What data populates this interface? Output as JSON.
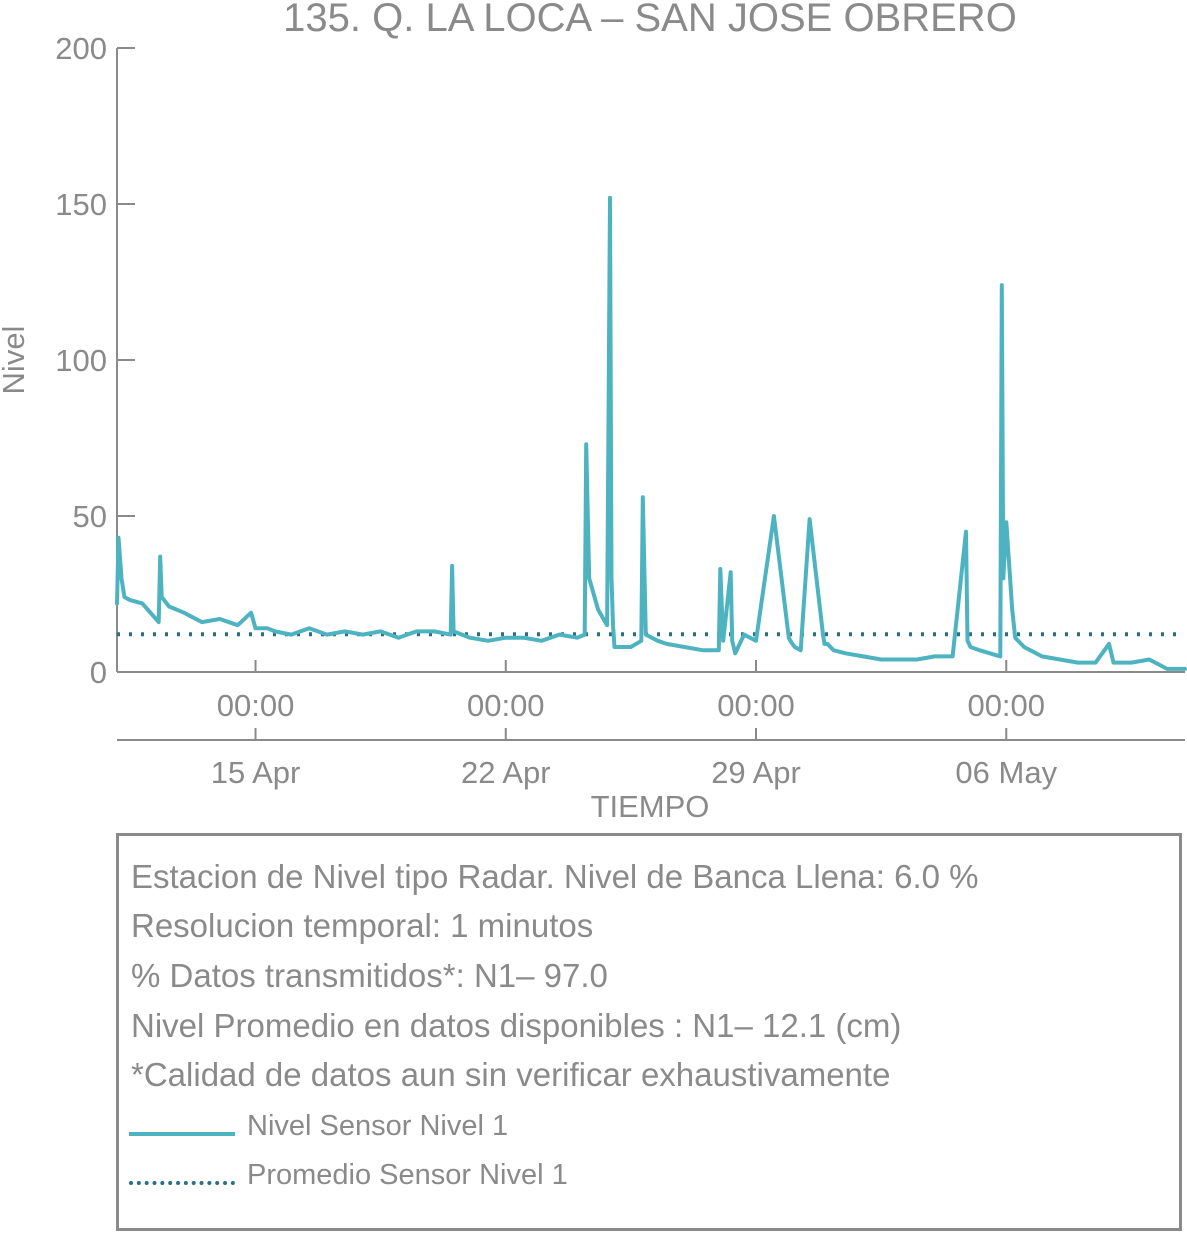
{
  "colors": {
    "level": "#4db3c0",
    "mean": "#2a6f87",
    "text": "#8a8a8a"
  },
  "chart_data": {
    "type": "line",
    "title": "135. Q. LA LOCA – SAN JOSE OBRERO",
    "xlabel": "TIEMPO",
    "ylabel": "Nivel",
    "ylim": [
      0,
      200
    ],
    "yticks": [
      0,
      50,
      100,
      150,
      200
    ],
    "xlim": [
      "2019-04-12 03:00",
      "2019-05-12 00:00"
    ],
    "xticks_time": [
      "00:00",
      "00:00",
      "00:00",
      "00:00"
    ],
    "xticks_date": [
      "15 Apr",
      "22 Apr",
      "29 Apr",
      "06 May"
    ],
    "xticks": [
      "2019-04-16 00:00",
      "2019-04-23 00:00",
      "2019-04-30 00:00",
      "2019-05-07 00:00"
    ],
    "grid": false,
    "legend": "bottom box",
    "series": [
      {
        "name": "Nivel Sensor Nivel 1",
        "style": "solid",
        "x": [
          "2019-04-12 03:00",
          "2019-04-12 04:00",
          "2019-04-12 06:00",
          "2019-04-12 08:00",
          "2019-04-12 12:00",
          "2019-04-12 20:00",
          "2019-04-13 07:00",
          "2019-04-13 08:00",
          "2019-04-13 09:00",
          "2019-04-13 14:00",
          "2019-04-14 00:00",
          "2019-04-14 12:00",
          "2019-04-15 00:00",
          "2019-04-15 12:00",
          "2019-04-15 21:00",
          "2019-04-16 00:00",
          "2019-04-16 08:00",
          "2019-04-16 13:00",
          "2019-04-17 00:00",
          "2019-04-17 12:00",
          "2019-04-18 00:00",
          "2019-04-18 12:00",
          "2019-04-19 00:00",
          "2019-04-19 12:00",
          "2019-04-20 00:00",
          "2019-04-20 12:00",
          "2019-04-21 00:00",
          "2019-04-21 11:00",
          "2019-04-21 12:00",
          "2019-04-21 13:00",
          "2019-04-22 00:00",
          "2019-04-22 12:00",
          "2019-04-23 00:00",
          "2019-04-23 12:00",
          "2019-04-24 00:00",
          "2019-04-24 12:00",
          "2019-04-25 00:00",
          "2019-04-25 05:00",
          "2019-04-25 06:00",
          "2019-04-25 08:00",
          "2019-04-25 14:00",
          "2019-04-25 20:00",
          "2019-04-25 22:00",
          "2019-04-25 23:00",
          "2019-04-26 00:00",
          "2019-04-26 01:00",
          "2019-04-26 04:00",
          "2019-04-26 12:00",
          "2019-04-26 19:00",
          "2019-04-26 20:00",
          "2019-04-26 22:00",
          "2019-04-27 06:00",
          "2019-04-27 12:00",
          "2019-04-28 00:00",
          "2019-04-28 12:00",
          "2019-04-28 23:00",
          "2019-04-29 00:00",
          "2019-04-29 02:00",
          "2019-04-29 07:00",
          "2019-04-29 08:00",
          "2019-04-29 10:00",
          "2019-04-29 16:00",
          "2019-04-30 00:00",
          "2019-04-30 12:00",
          "2019-04-30 22:00",
          "2019-04-30 23:00",
          "2019-05-01 02:00",
          "2019-05-01 06:00",
          "2019-05-01 12:00",
          "2019-05-01 21:00",
          "2019-05-01 22:00",
          "2019-05-02 00:00",
          "2019-05-02 04:00",
          "2019-05-02 12:00",
          "2019-05-03 00:00",
          "2019-05-03 12:00",
          "2019-05-04 00:00",
          "2019-05-04 12:00",
          "2019-05-05 00:00",
          "2019-05-05 12:00",
          "2019-05-05 21:00",
          "2019-05-05 22:00",
          "2019-05-06 00:00",
          "2019-05-06 06:00",
          "2019-05-06 20:00",
          "2019-05-06 21:00",
          "2019-05-06 22:00",
          "2019-05-07 00:00",
          "2019-05-07 04:00",
          "2019-05-07 06:00",
          "2019-05-07 12:00",
          "2019-05-08 00:00",
          "2019-05-08 12:00",
          "2019-05-09 00:00",
          "2019-05-09 12:00",
          "2019-05-09 21:00",
          "2019-05-10 00:00",
          "2019-05-10 12:00",
          "2019-05-11 00:00",
          "2019-05-11 12:00",
          "2019-05-12 00:00"
        ],
        "values": [
          22,
          43,
          30,
          24,
          23,
          22,
          16,
          37,
          24,
          21,
          19,
          16,
          17,
          15,
          19,
          14,
          14,
          13,
          12,
          14,
          12,
          13,
          12,
          13,
          11,
          13,
          13,
          12,
          34,
          13,
          11,
          10,
          11,
          11,
          10,
          12,
          11,
          12,
          73,
          30,
          20,
          15,
          152,
          30,
          15,
          8,
          8,
          8,
          10,
          56,
          12,
          10,
          9,
          8,
          7,
          7,
          33,
          10,
          32,
          10,
          6,
          12,
          10,
          50,
          11,
          10,
          8,
          7,
          49,
          12,
          9,
          9,
          7,
          6,
          5,
          4,
          4,
          4,
          5,
          5,
          45,
          10,
          8,
          7,
          5,
          124,
          30,
          48,
          20,
          11,
          8,
          5,
          4,
          3,
          3,
          9,
          3,
          3,
          4,
          1,
          1
        ]
      },
      {
        "name": "Promedio Sensor Nivel 1",
        "style": "dotted",
        "value": 12.1
      }
    ]
  },
  "info": {
    "line1": "Estacion de Nivel tipo Radar. Nivel de Banca Llena:  6.0 %",
    "line2": "Resolucion temporal: 1 minutos",
    "line3": "% Datos transmitidos*: N1– 97.0",
    "line4": "Nivel Promedio en datos disponibles : N1– 12.1 (cm)",
    "line5": "*Calidad de datos aun sin verificar exhaustivamente"
  },
  "legend": {
    "level_label": "Nivel Sensor Nivel 1",
    "mean_label": "Promedio Sensor Nivel 1"
  }
}
